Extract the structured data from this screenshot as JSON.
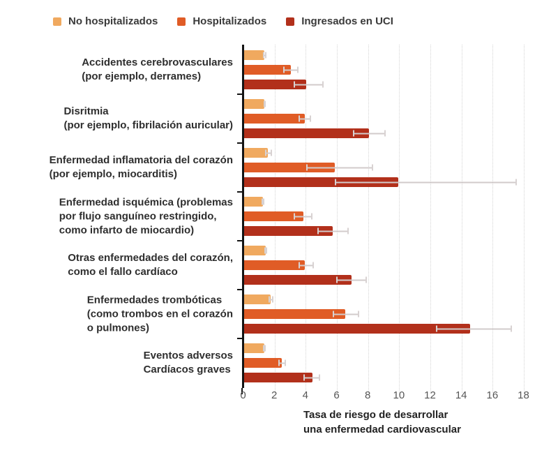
{
  "chart_data": {
    "type": "bar",
    "orientation": "horizontal",
    "xlabel_lines": [
      "Tasa de riesgo de desarrollar",
      "una enfermedad cardiovascular"
    ],
    "xlim": [
      0,
      18
    ],
    "xticks": [
      0,
      2,
      4,
      6,
      8,
      10,
      12,
      14,
      16,
      18
    ],
    "grid": "vertical-dotted",
    "legend_position": "top",
    "categories": [
      [
        "Accidentes cerebrovasculares",
        "(por ejemplo, derrames)"
      ],
      [
        "Disritmia",
        "(por ejemplo, fibrilación auricular)"
      ],
      [
        "Enfermedad inflamatoria del corazón",
        "(por ejemplo, miocarditis)"
      ],
      [
        "Enfermedad isquémica (problemas",
        "por flujo sanguíneo restringido,",
        "como infarto de miocardio)"
      ],
      [
        "Otras enfermedades del corazón,",
        "como el fallo cardíaco"
      ],
      [
        "Enfermedades trombóticas",
        "(como trombos en el corazón",
        "o pulmones)"
      ],
      [
        "Eventos adversos",
        "Cardíacos graves"
      ]
    ],
    "series": [
      {
        "name": "No hospitalizados",
        "color": "#F0A95F",
        "values": [
          1.3,
          1.3,
          1.5,
          1.2,
          1.4,
          1.7,
          1.3
        ],
        "error_low": [
          1.2,
          1.25,
          1.35,
          1.1,
          1.3,
          1.55,
          1.2
        ],
        "error_high": [
          1.45,
          1.4,
          1.8,
          1.3,
          1.5,
          1.9,
          1.4
        ]
      },
      {
        "name": "Hospitalizados",
        "color": "#E05C26",
        "values": [
          3.0,
          3.9,
          5.8,
          3.8,
          3.9,
          6.5,
          2.4
        ],
        "error_low": [
          2.5,
          3.5,
          4.0,
          3.2,
          3.5,
          5.7,
          2.2
        ],
        "error_high": [
          3.5,
          4.3,
          8.3,
          4.4,
          4.5,
          7.4,
          2.7
        ]
      },
      {
        "name": "Ingresados en UCI",
        "color": "#B2301B",
        "values": [
          4.0,
          8.0,
          9.9,
          5.7,
          6.9,
          14.5,
          4.4
        ],
        "error_low": [
          3.2,
          7.0,
          5.8,
          4.7,
          5.9,
          12.3,
          3.8
        ],
        "error_high": [
          5.1,
          9.1,
          17.5,
          6.7,
          7.9,
          17.2,
          4.9
        ]
      }
    ],
    "colors": {
      "axis": "#141414",
      "gridline": "#d4d4d4",
      "whisker": "#d2cbcb",
      "tick_text": "#565656",
      "label_text": "#2e2e2e"
    }
  }
}
